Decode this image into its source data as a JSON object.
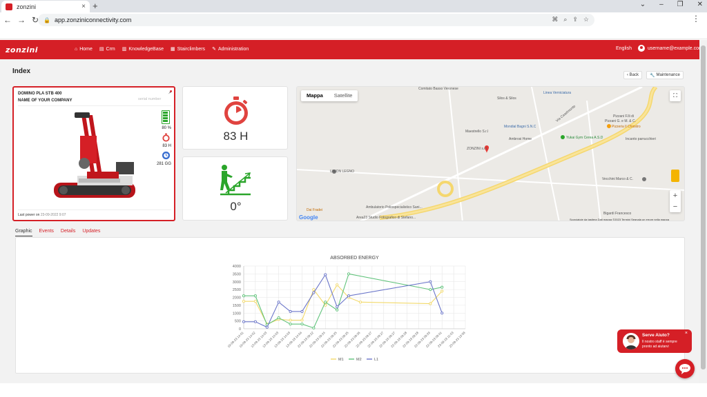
{
  "browser": {
    "tab_title": "zonzini",
    "url": "app.zonziniconnectivity.com",
    "new_tab": "+",
    "close": "×"
  },
  "header": {
    "logo": "zonzini",
    "nav": [
      {
        "label": "Home",
        "icon": "home-icon"
      },
      {
        "label": "Crm",
        "icon": "crm-icon"
      },
      {
        "label": "KnowledgeBase",
        "icon": "book-icon"
      },
      {
        "label": "Stairclimbers",
        "icon": "stairclimber-icon"
      },
      {
        "label": "Administration",
        "icon": "wrench-icon"
      }
    ],
    "language": "English",
    "user": "username@example.com"
  },
  "page": {
    "title": "Index",
    "back_label": "‹ Back",
    "maintenance_label": "Maintenance"
  },
  "device": {
    "model": "DOMINO PLA STB 400",
    "company": "NAME OF YOUR COMPANY",
    "serial": "serial number",
    "battery": "80 %",
    "hours": "83 H",
    "days": "281 GG",
    "last_power_label": "Last power on",
    "last_power_date": "23-09-2022 9:07",
    "battery_level": 0.8
  },
  "widgets": {
    "hours": "83 H",
    "angle": "0°"
  },
  "map": {
    "tab_map": "Mappa",
    "tab_satellite": "Satellite",
    "labels": [
      {
        "text": "Comitato Basso Veronese",
        "cls": ""
      },
      {
        "text": "Linea Verniciatura",
        "cls": "blue"
      },
      {
        "text": "Silos & Silos",
        "cls": ""
      },
      {
        "text": "Pizzani F.lli di",
        "cls": ""
      },
      {
        "text": "Pizzani G. e M. & C.",
        "cls": ""
      },
      {
        "text": "Pizzeria Il Chiostro",
        "cls": "poi"
      },
      {
        "text": "Mondial Bagni S.N.C",
        "cls": "blue"
      },
      {
        "text": "Ambrosi Home",
        "cls": ""
      },
      {
        "text": "Yukai Gym Cerea A.S.D",
        "cls": "green"
      },
      {
        "text": "Maestrello S.r.l",
        "cls": ""
      },
      {
        "text": "ZONZINI s.r.l",
        "cls": ""
      },
      {
        "text": "Incanto parrucchieri",
        "cls": ""
      },
      {
        "text": "UNION LEGNO",
        "cls": ""
      },
      {
        "text": "Vecchini Marco & C.",
        "cls": ""
      },
      {
        "text": "Ambulatorio Poliospecialistico Sani...",
        "cls": ""
      },
      {
        "text": "Dai Fradei",
        "cls": "poi"
      },
      {
        "text": "Area23 Studio Fotografico di Stefano...",
        "cls": ""
      },
      {
        "text": "Bigardi Francesco",
        "cls": ""
      },
      {
        "text": "Via Caselmonte",
        "cls": ""
      }
    ],
    "footer": "Scorciatoie da tastiera   Dati mappa ©2023   Termini   Segnala un errore nella mappa",
    "zoom_in": "+",
    "zoom_out": "−",
    "google": "Google"
  },
  "tabs": [
    "Graphic",
    "Events",
    "Details",
    "Updates"
  ],
  "chart_data": {
    "type": "line",
    "title": "ABSORBED ENERGY",
    "categories": [
      "19-09-23 14:01",
      "19-09-23 14:02",
      "13-09-23 14:03",
      "13-09-23 14:03",
      "13-09-23 14:03",
      "13-09-23 14:04",
      "22-09-23 09:22",
      "22-09-23 09:24",
      "22-09-23 09:25",
      "22-09-23 09:25",
      "22-09-23 09:26",
      "22-09-23 09:27",
      "22-09-23 09:27",
      "22-09-23 09:27",
      "22-09-23 09:28",
      "22-09-23 09:28",
      "22-09-23 09:29",
      "22-09-23 09:41",
      "23-09-23 11:03",
      "23-09-23 13:58"
    ],
    "ylim": [
      0,
      4000
    ],
    "yticks": [
      0,
      500,
      1000,
      1500,
      2000,
      2500,
      3000,
      3500,
      4000
    ],
    "series": [
      {
        "name": "M1",
        "color": "#f2d96a",
        "values": [
          1750,
          1750,
          300,
          600,
          550,
          550,
          2500,
          1500,
          2800,
          2000,
          1700,
          null,
          null,
          null,
          null,
          null,
          1600,
          2400,
          null,
          null
        ]
      },
      {
        "name": "M2",
        "color": "#5fc27a",
        "values": [
          2100,
          2100,
          250,
          700,
          300,
          300,
          50,
          1700,
          1200,
          3500,
          null,
          null,
          null,
          null,
          null,
          null,
          2500,
          2650,
          null,
          null
        ]
      },
      {
        "name": "L1",
        "color": "#6a75c9",
        "values": [
          450,
          450,
          100,
          1700,
          1100,
          1100,
          2300,
          3450,
          1400,
          2100,
          null,
          null,
          null,
          null,
          null,
          null,
          3000,
          1000,
          null,
          null
        ]
      }
    ]
  },
  "chat": {
    "title": "Serve Aiuto?",
    "text": "Il nostro staff è sempre pronto ad aiutarvi",
    "close": "×"
  }
}
